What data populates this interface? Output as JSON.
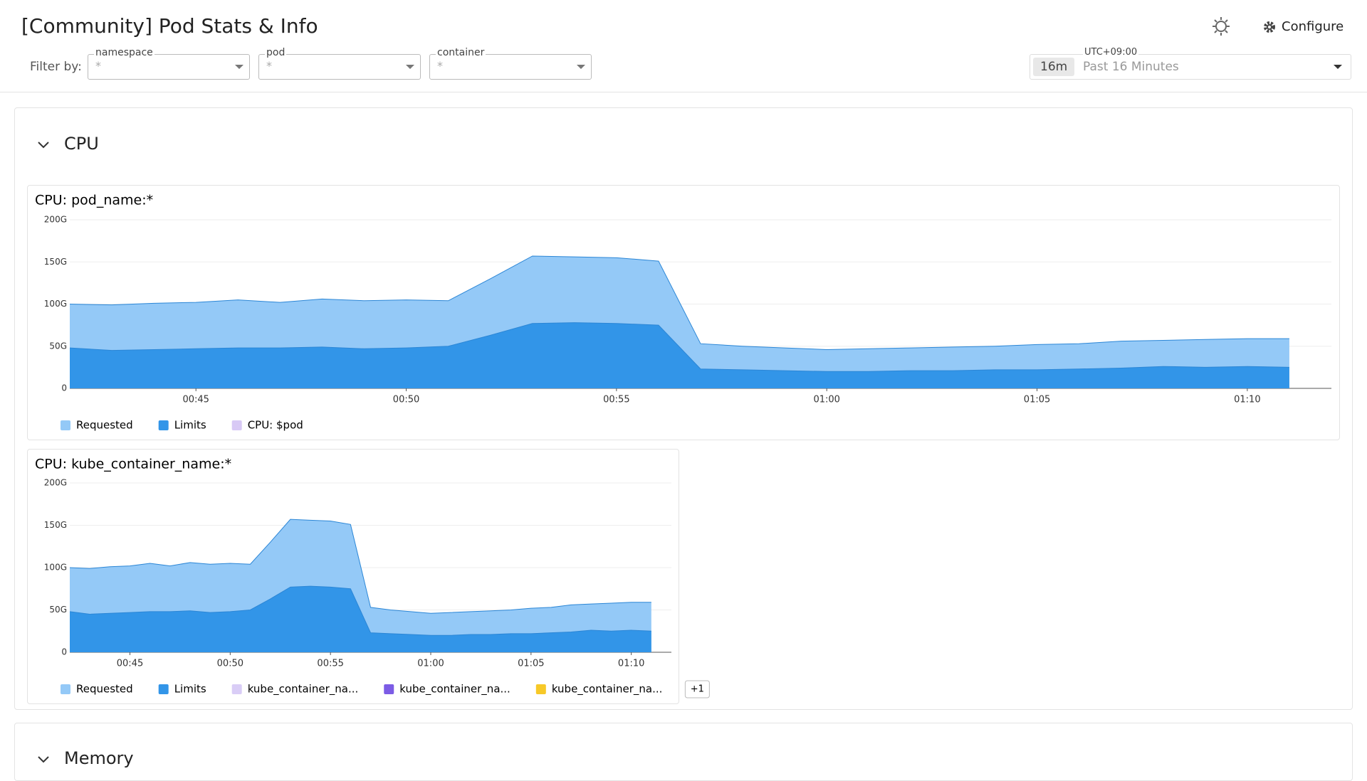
{
  "header": {
    "title": "[Community] Pod Stats & Info",
    "configure": "Configure",
    "filter_label": "Filter by:"
  },
  "filters": [
    {
      "label": "namespace",
      "value": "*"
    },
    {
      "label": "pod",
      "value": "*"
    },
    {
      "label": "container",
      "value": "*"
    }
  ],
  "time_picker": {
    "timezone": "UTC+09:00",
    "badge": "16m",
    "range": "Past 16 Minutes"
  },
  "sections": [
    "CPU",
    "Memory"
  ],
  "chart_data": [
    {
      "type": "area",
      "title": "CPU: pod_name:*",
      "x": [
        "00:42",
        "00:43",
        "00:44",
        "00:45",
        "00:46",
        "00:47",
        "00:48",
        "00:49",
        "00:50",
        "00:51",
        "00:52",
        "00:53",
        "00:54",
        "00:55",
        "00:56",
        "00:57",
        "00:58",
        "00:59",
        "01:00",
        "01:01",
        "01:02",
        "01:03",
        "01:04",
        "01:05",
        "01:06",
        "01:07",
        "01:08",
        "01:09",
        "01:10",
        "01:11",
        "01:12"
      ],
      "xticks": [
        "00:45",
        "00:50",
        "00:55",
        "01:00",
        "01:05",
        "01:10"
      ],
      "ylim": [
        0,
        200
      ],
      "yticks": [
        0,
        {
          "value": 50,
          "label": "50G"
        },
        {
          "value": 100,
          "label": "100G"
        },
        {
          "value": 150,
          "label": "150G"
        },
        {
          "value": 200,
          "label": "200G"
        }
      ],
      "grid": true,
      "series": [
        {
          "name": "Requested",
          "color": "#94c9f7",
          "values": [
            100,
            99,
            101,
            102,
            105,
            102,
            106,
            104,
            105,
            104,
            130,
            157,
            156,
            155,
            151,
            53,
            50,
            48,
            46,
            47,
            48,
            49,
            50,
            52,
            53,
            56,
            57,
            58,
            59,
            59,
            null
          ]
        },
        {
          "name": "Limits",
          "color": "#3295e8",
          "values": [
            48,
            45,
            46,
            47,
            48,
            48,
            49,
            47,
            48,
            50,
            63,
            77,
            78,
            77,
            75,
            23,
            22,
            21,
            20,
            20,
            21,
            21,
            22,
            22,
            23,
            24,
            26,
            25,
            26,
            25,
            null
          ]
        },
        {
          "name": "CPU: $pod",
          "color": "#d8c9f5",
          "values": [
            null,
            null,
            null,
            null,
            null,
            null,
            null,
            null,
            null,
            null,
            null,
            null,
            null,
            null,
            null,
            null,
            null,
            null,
            null,
            null,
            null,
            null,
            null,
            null,
            null,
            null,
            null,
            null,
            null,
            null,
            null
          ]
        }
      ]
    },
    {
      "type": "area",
      "title": "CPU: kube_container_name:*",
      "x": [
        "00:42",
        "00:43",
        "00:44",
        "00:45",
        "00:46",
        "00:47",
        "00:48",
        "00:49",
        "00:50",
        "00:51",
        "00:52",
        "00:53",
        "00:54",
        "00:55",
        "00:56",
        "00:57",
        "00:58",
        "00:59",
        "01:00",
        "01:01",
        "01:02",
        "01:03",
        "01:04",
        "01:05",
        "01:06",
        "01:07",
        "01:08",
        "01:09",
        "01:10",
        "01:11",
        "01:12"
      ],
      "xticks": [
        "00:45",
        "00:50",
        "00:55",
        "01:00",
        "01:05",
        "01:10"
      ],
      "ylim": [
        0,
        200
      ],
      "yticks": [
        0,
        {
          "value": 50,
          "label": "50G"
        },
        {
          "value": 100,
          "label": "100G"
        },
        {
          "value": 150,
          "label": "150G"
        },
        {
          "value": 200,
          "label": "200G"
        }
      ],
      "grid": true,
      "more": "+1",
      "series": [
        {
          "name": "Requested",
          "color": "#94c9f7",
          "values": [
            100,
            99,
            101,
            102,
            105,
            102,
            106,
            104,
            105,
            104,
            130,
            157,
            156,
            155,
            151,
            53,
            50,
            48,
            46,
            47,
            48,
            49,
            50,
            52,
            53,
            56,
            57,
            58,
            59,
            59,
            null
          ]
        },
        {
          "name": "Limits",
          "color": "#3295e8",
          "values": [
            48,
            45,
            46,
            47,
            48,
            48,
            49,
            47,
            48,
            50,
            63,
            77,
            78,
            77,
            75,
            23,
            22,
            21,
            20,
            20,
            21,
            21,
            22,
            22,
            23,
            24,
            26,
            25,
            26,
            25,
            null
          ]
        },
        {
          "name": "kube_container_na...",
          "color": "#d9cdf6",
          "values": [
            null,
            null,
            null,
            null,
            null,
            null,
            null,
            null,
            null,
            null,
            null,
            null,
            null,
            null,
            null,
            null,
            null,
            null,
            null,
            null,
            null,
            null,
            null,
            null,
            null,
            null,
            null,
            null,
            null,
            null,
            null
          ]
        },
        {
          "name": "kube_container_na...",
          "color": "#7c5ce5",
          "values": [
            null,
            null,
            null,
            null,
            null,
            null,
            null,
            null,
            null,
            null,
            null,
            null,
            null,
            null,
            null,
            null,
            null,
            null,
            null,
            null,
            null,
            null,
            null,
            null,
            null,
            null,
            null,
            null,
            null,
            null,
            null
          ]
        },
        {
          "name": "kube_container_na...",
          "color": "#f7c928",
          "values": [
            null,
            null,
            null,
            null,
            null,
            null,
            null,
            null,
            null,
            null,
            null,
            null,
            null,
            null,
            null,
            null,
            null,
            null,
            null,
            null,
            null,
            null,
            null,
            null,
            null,
            null,
            null,
            null,
            null,
            null,
            null
          ]
        }
      ]
    }
  ]
}
